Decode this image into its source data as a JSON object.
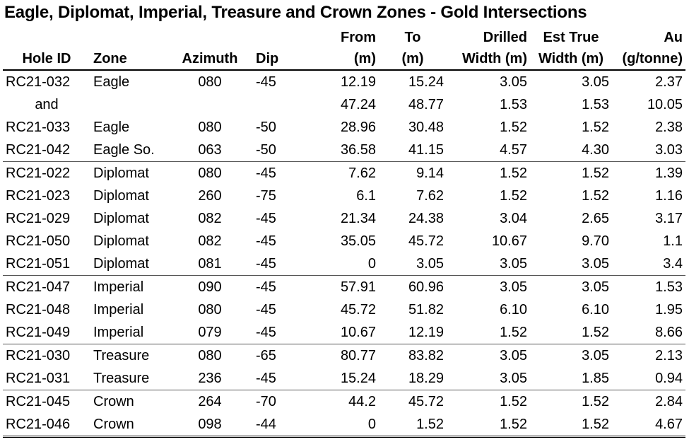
{
  "title": "Eagle, Diplomat, Imperial, Treasure and Crown Zones  - Gold Intersections",
  "header_top": [
    "",
    "",
    "",
    "",
    "From",
    "To",
    "Drilled",
    "Est True",
    "Au"
  ],
  "header_bottom": [
    "Hole ID",
    "Zone",
    "Azimuth",
    "Dip",
    "(m)",
    "(m)",
    "Width (m)",
    "Width (m)",
    "(g/tonne)"
  ],
  "rows": [
    {
      "hole": "RC21-032",
      "zone": "Eagle",
      "azimuth": "080",
      "dip": "-45",
      "from": "12.19",
      "to": "15.24",
      "drilled_width": "3.05",
      "true_width": "3.05",
      "au": "2.37",
      "group_start": true
    },
    {
      "hole": "and",
      "zone": "",
      "azimuth": "",
      "dip": "",
      "from": "47.24",
      "to": "48.77",
      "drilled_width": "1.53",
      "true_width": "1.53",
      "au": "10.05",
      "group_start": false
    },
    {
      "hole": "RC21-033",
      "zone": "Eagle",
      "azimuth": "080",
      "dip": "-50",
      "from": "28.96",
      "to": "30.48",
      "drilled_width": "1.52",
      "true_width": "1.52",
      "au": "2.38",
      "group_start": false
    },
    {
      "hole": "RC21-042",
      "zone": "Eagle So.",
      "azimuth": "063",
      "dip": "-50",
      "from": "36.58",
      "to": "41.15",
      "drilled_width": "4.57",
      "true_width": "4.30",
      "au": "3.03",
      "group_start": false
    },
    {
      "hole": "RC21-022",
      "zone": "Diplomat",
      "azimuth": "080",
      "dip": "-45",
      "from": "7.62",
      "to": "9.14",
      "drilled_width": "1.52",
      "true_width": "1.52",
      "au": "1.39",
      "group_start": true
    },
    {
      "hole": "RC21-023",
      "zone": "Diplomat",
      "azimuth": "260",
      "dip": "-75",
      "from": "6.1",
      "to": "7.62",
      "drilled_width": "1.52",
      "true_width": "1.52",
      "au": "1.16",
      "group_start": false
    },
    {
      "hole": "RC21-029",
      "zone": "Diplomat",
      "azimuth": "082",
      "dip": "-45",
      "from": "21.34",
      "to": "24.38",
      "drilled_width": "3.04",
      "true_width": "2.65",
      "au": "3.17",
      "group_start": false
    },
    {
      "hole": "RC21-050",
      "zone": "Diplomat",
      "azimuth": "082",
      "dip": "-45",
      "from": "35.05",
      "to": "45.72",
      "drilled_width": "10.67",
      "true_width": "9.70",
      "au": "1.1",
      "group_start": false
    },
    {
      "hole": "RC21-051",
      "zone": "Diplomat",
      "azimuth": "081",
      "dip": "-45",
      "from": "0",
      "to": "3.05",
      "drilled_width": "3.05",
      "true_width": "3.05",
      "au": "3.4",
      "group_start": false
    },
    {
      "hole": "RC21-047",
      "zone": "Imperial",
      "azimuth": "090",
      "dip": "-45",
      "from": "57.91",
      "to": "60.96",
      "drilled_width": "3.05",
      "true_width": "3.05",
      "au": "1.53",
      "group_start": true
    },
    {
      "hole": "RC21-048",
      "zone": "Imperial",
      "azimuth": "080",
      "dip": "-45",
      "from": "45.72",
      "to": "51.82",
      "drilled_width": "6.10",
      "true_width": "6.10",
      "au": "1.95",
      "group_start": false
    },
    {
      "hole": "RC21-049",
      "zone": "Imperial",
      "azimuth": "079",
      "dip": "-45",
      "from": "10.67",
      "to": "12.19",
      "drilled_width": "1.52",
      "true_width": "1.52",
      "au": "8.66",
      "group_start": false
    },
    {
      "hole": "RC21-030",
      "zone": "Treasure",
      "azimuth": "080",
      "dip": "-65",
      "from": "80.77",
      "to": "83.82",
      "drilled_width": "3.05",
      "true_width": "3.05",
      "au": "2.13",
      "group_start": true
    },
    {
      "hole": "RC21-031",
      "zone": "Treasure",
      "azimuth": "236",
      "dip": "-45",
      "from": "15.24",
      "to": "18.29",
      "drilled_width": "3.05",
      "true_width": "1.85",
      "au": "0.94",
      "group_start": false
    },
    {
      "hole": "RC21-045",
      "zone": "Crown",
      "azimuth": "264",
      "dip": "-70",
      "from": "44.2",
      "to": "45.72",
      "drilled_width": "1.52",
      "true_width": "1.52",
      "au": "2.84",
      "group_start": true
    },
    {
      "hole": "RC21-046",
      "zone": "Crown",
      "azimuth": "098",
      "dip": "-44",
      "from": "0",
      "to": "1.52",
      "drilled_width": "1.52",
      "true_width": "1.52",
      "au": "4.67",
      "group_start": false
    }
  ]
}
